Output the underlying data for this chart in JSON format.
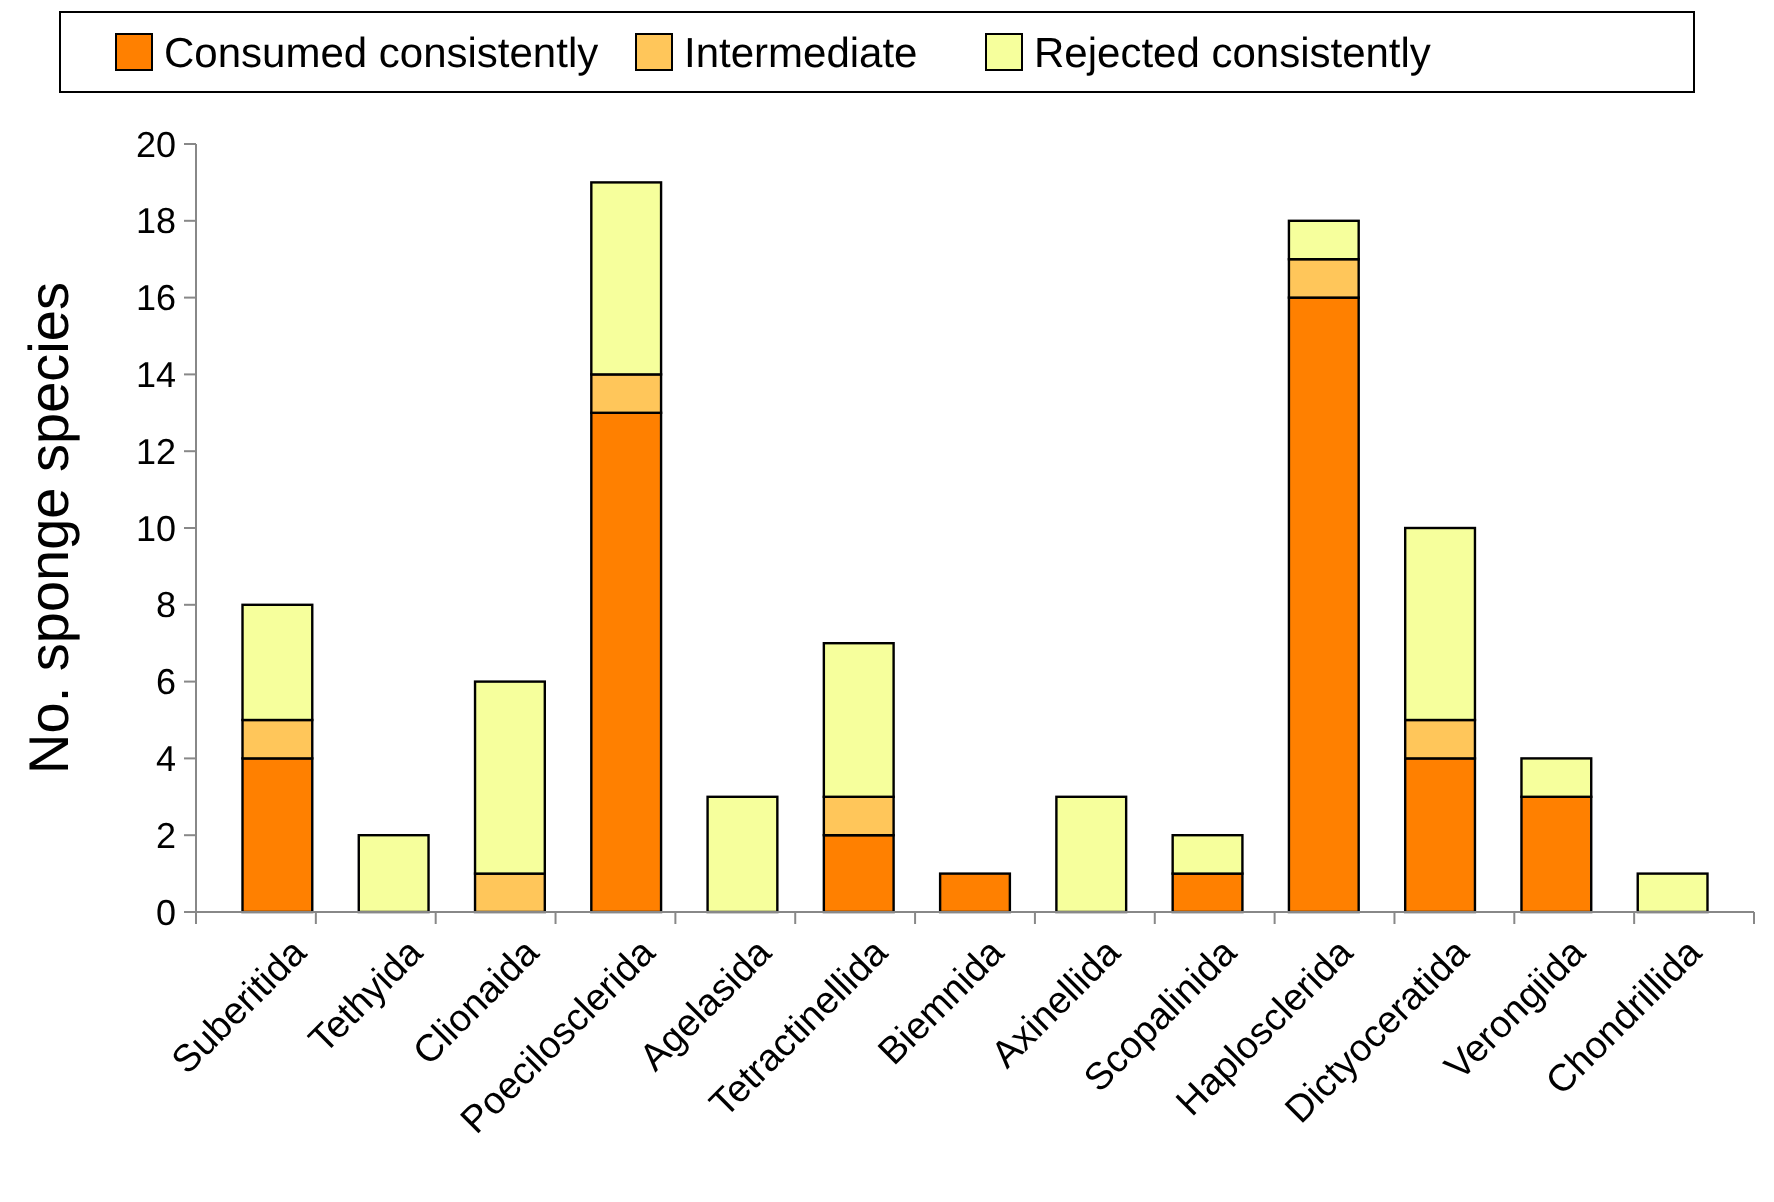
{
  "chart_data": {
    "type": "bar",
    "stacked": true,
    "ylabel": "No. sponge species",
    "categories": [
      "Suberitida",
      "Tethyida",
      "Clionaida",
      "Poecilosclerida",
      "Agelasida",
      "Tetractinellida",
      "Biemnida",
      "Axinellida",
      "Scopalinida",
      "Haplosclerida",
      "Dictyoceratida",
      "Verongiida",
      "Chondrillida"
    ],
    "series": [
      {
        "name": "Consumed consistently",
        "color": "#ff8000",
        "values": [
          4,
          0,
          0,
          13,
          0,
          2,
          1,
          0,
          1,
          16,
          4,
          3,
          0
        ]
      },
      {
        "name": "Intermediate",
        "color": "#ffc65a",
        "values": [
          1,
          0,
          1,
          1,
          0,
          1,
          0,
          0,
          0,
          1,
          1,
          0,
          0
        ]
      },
      {
        "name": "Rejected consistently",
        "color": "#f6ff9c",
        "values": [
          3,
          2,
          5,
          5,
          3,
          4,
          0,
          3,
          1,
          1,
          5,
          1,
          1
        ]
      }
    ],
    "ylim": [
      0,
      20
    ],
    "yticks": [
      0,
      2,
      4,
      6,
      8,
      10,
      12,
      14,
      16,
      18,
      20
    ],
    "legend": "top",
    "grid": false
  }
}
